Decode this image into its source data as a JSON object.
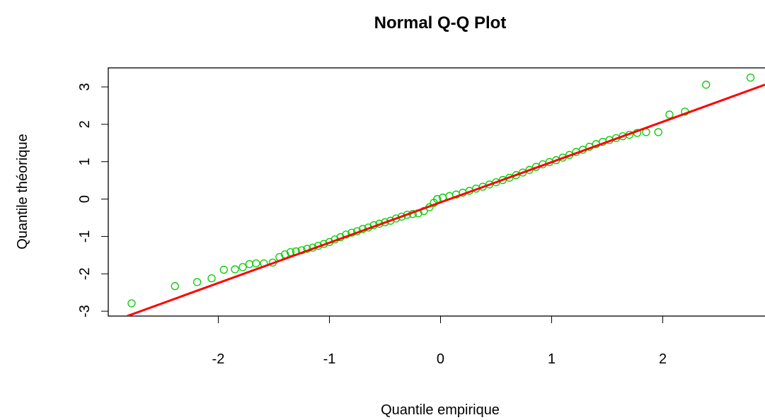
{
  "chart_data": {
    "type": "scatter",
    "title": "Normal Q-Q Plot",
    "x_label": "Quantile empirique",
    "y_label": "Quantile théorique",
    "series": [
      {
        "color": "#00cc00",
        "x": [
          -2.78,
          -2.39,
          -2.19,
          -2.06,
          -1.95,
          -1.85,
          -1.78,
          -1.72,
          -1.66,
          -1.59,
          -1.51,
          -1.45,
          -1.4,
          -1.35,
          -1.3,
          -1.25,
          -1.2,
          -1.15,
          -1.1,
          -1.05,
          -1.0,
          -0.95,
          -0.9,
          -0.85,
          -0.8,
          -0.75,
          -0.7,
          -0.65,
          -0.6,
          -0.55,
          -0.5,
          -0.45,
          -0.4,
          -0.35,
          -0.3,
          -0.25,
          -0.2,
          -0.15,
          -0.1,
          -0.06,
          -0.03,
          0.02,
          0.08,
          0.14,
          0.2,
          0.26,
          0.32,
          0.38,
          0.44,
          0.5,
          0.56,
          0.62,
          0.68,
          0.74,
          0.8,
          0.86,
          0.92,
          0.98,
          1.04,
          1.1,
          1.16,
          1.22,
          1.28,
          1.34,
          1.4,
          1.46,
          1.52,
          1.58,
          1.64,
          1.7,
          1.77,
          1.85,
          1.96,
          2.06,
          2.2,
          2.39,
          2.79
        ],
        "values": [
          -2.79,
          -2.33,
          -2.22,
          -2.12,
          -1.89,
          -1.88,
          -1.82,
          -1.74,
          -1.72,
          -1.72,
          -1.7,
          -1.55,
          -1.48,
          -1.42,
          -1.4,
          -1.37,
          -1.33,
          -1.3,
          -1.25,
          -1.2,
          -1.15,
          -1.08,
          -1.02,
          -0.95,
          -0.9,
          -0.86,
          -0.8,
          -0.76,
          -0.7,
          -0.66,
          -0.62,
          -0.58,
          -0.52,
          -0.47,
          -0.42,
          -0.4,
          -0.38,
          -0.32,
          -0.22,
          -0.1,
          0.0,
          0.04,
          0.08,
          0.12,
          0.17,
          0.22,
          0.28,
          0.33,
          0.39,
          0.45,
          0.51,
          0.57,
          0.64,
          0.71,
          0.78,
          0.86,
          0.93,
          0.99,
          1.04,
          1.11,
          1.18,
          1.26,
          1.32,
          1.4,
          1.47,
          1.53,
          1.58,
          1.63,
          1.68,
          1.72,
          1.77,
          1.79,
          1.79,
          2.26,
          2.34,
          3.06,
          3.25
        ]
      }
    ],
    "reference_line": {
      "color": "#ff0000",
      "x": [
        -2.82,
        2.92
      ],
      "values": [
        -3.13,
        3.06
      ]
    },
    "xlim": [
      -2.99,
      2.92
    ],
    "ylim": [
      -3.13,
      3.51
    ],
    "xticks": [
      -2,
      -1,
      0,
      1,
      2
    ],
    "yticks": [
      -3,
      -2,
      -1,
      0,
      1,
      2,
      3
    ]
  }
}
